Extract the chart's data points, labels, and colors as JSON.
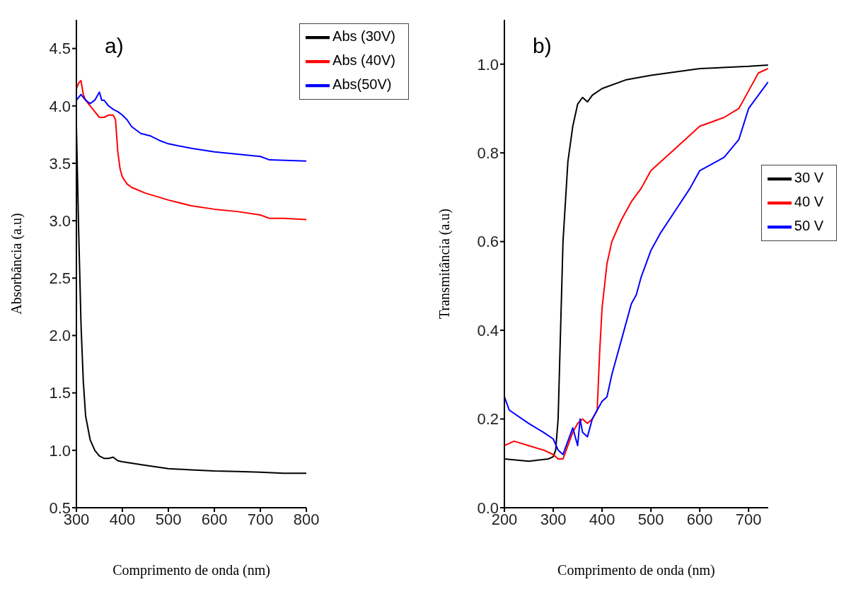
{
  "chart_data": [
    {
      "type": "line",
      "xlabel": "Comprimento de onda (nm)",
      "ylabel": "Absorbância (a.u)",
      "annotations": [
        "a)"
      ],
      "xlim": [
        300,
        800
      ],
      "xticks": [
        300,
        400,
        500,
        600,
        700,
        800
      ],
      "ylim": [
        0.5,
        4.75
      ],
      "yticks": [
        0.5,
        {
          "value": 1,
          "label": "1.0"
        },
        1.5,
        {
          "value": 2,
          "label": "2.0"
        },
        2.5,
        {
          "value": 3,
          "label": "3.0"
        },
        3.5,
        {
          "value": 4,
          "label": "4.0"
        },
        4.5
      ],
      "legend": "top right",
      "grid": false,
      "marker": "none",
      "line_style": "solid",
      "series": [
        {
          "name": "Abs (30V)",
          "color": "#000000",
          "x": [
            300,
            305,
            310,
            315,
            320,
            330,
            340,
            350,
            360,
            370,
            380,
            390,
            400,
            450,
            500,
            550,
            600,
            650,
            700,
            750,
            800
          ],
          "values": [
            3.83,
            2.9,
            2.1,
            1.6,
            1.3,
            1.09,
            1.0,
            0.95,
            0.93,
            0.93,
            0.94,
            0.91,
            0.9,
            0.87,
            0.84,
            0.83,
            0.82,
            0.815,
            0.81,
            0.8,
            0.8
          ]
        },
        {
          "name": "Abs (40V)",
          "color": "#ff0000",
          "x": [
            300,
            305,
            310,
            315,
            320,
            330,
            340,
            350,
            360,
            370,
            380,
            385,
            390,
            395,
            400,
            410,
            420,
            450,
            500,
            550,
            600,
            650,
            700,
            720,
            750,
            800
          ],
          "values": [
            4.15,
            4.2,
            4.22,
            4.1,
            4.05,
            4.0,
            3.95,
            3.9,
            3.9,
            3.92,
            3.92,
            3.88,
            3.6,
            3.45,
            3.38,
            3.32,
            3.29,
            3.24,
            3.18,
            3.13,
            3.1,
            3.08,
            3.05,
            3.02,
            3.02,
            3.01
          ]
        },
        {
          "name": "Abs(50V)",
          "color": "#0000ff",
          "x": [
            300,
            310,
            320,
            330,
            340,
            350,
            355,
            360,
            370,
            380,
            390,
            400,
            410,
            420,
            440,
            460,
            480,
            500,
            550,
            600,
            650,
            700,
            720,
            800
          ],
          "values": [
            4.05,
            4.1,
            4.05,
            4.02,
            4.05,
            4.12,
            4.05,
            4.05,
            4.0,
            3.97,
            3.95,
            3.92,
            3.88,
            3.82,
            3.76,
            3.74,
            3.7,
            3.67,
            3.63,
            3.6,
            3.58,
            3.56,
            3.53,
            3.52
          ]
        }
      ]
    },
    {
      "type": "line",
      "xlabel": "Comprimento de onda (nm)",
      "ylabel": "Transmitância (a.u)",
      "annotations": [
        "b)"
      ],
      "xlim": [
        200,
        740
      ],
      "xticks": [
        200,
        300,
        400,
        500,
        600,
        700
      ],
      "ylim": [
        0,
        1.1
      ],
      "yticks": [
        {
          "value": 0,
          "label": "0.0"
        },
        0.2,
        0.4,
        0.6,
        0.8,
        {
          "value": 1,
          "label": "1.0"
        }
      ],
      "legend": "right",
      "grid": false,
      "marker": "none",
      "line_style": "solid",
      "series": [
        {
          "name": "30 V",
          "color": "#000000",
          "x": [
            200,
            250,
            290,
            300,
            305,
            310,
            315,
            320,
            330,
            340,
            350,
            360,
            370,
            380,
            400,
            450,
            500,
            600,
            700,
            740
          ],
          "values": [
            0.11,
            0.105,
            0.11,
            0.115,
            0.13,
            0.2,
            0.4,
            0.6,
            0.78,
            0.86,
            0.91,
            0.925,
            0.915,
            0.93,
            0.945,
            0.965,
            0.975,
            0.99,
            0.995,
            0.998
          ]
        },
        {
          "name": "40 V",
          "color": "#ff0000",
          "x": [
            200,
            220,
            250,
            280,
            300,
            310,
            320,
            330,
            340,
            350,
            360,
            370,
            380,
            390,
            395,
            400,
            410,
            420,
            440,
            460,
            480,
            500,
            550,
            600,
            650,
            680,
            700,
            720,
            740
          ],
          "values": [
            0.14,
            0.15,
            0.14,
            0.13,
            0.12,
            0.11,
            0.11,
            0.14,
            0.17,
            0.19,
            0.2,
            0.19,
            0.2,
            0.22,
            0.35,
            0.45,
            0.55,
            0.6,
            0.65,
            0.69,
            0.72,
            0.76,
            0.81,
            0.86,
            0.88,
            0.9,
            0.94,
            0.98,
            0.99
          ]
        },
        {
          "name": "50 V",
          "color": "#0000ff",
          "x": [
            200,
            210,
            250,
            280,
            300,
            310,
            320,
            330,
            340,
            350,
            355,
            360,
            370,
            380,
            390,
            400,
            410,
            420,
            440,
            460,
            470,
            480,
            500,
            520,
            550,
            580,
            600,
            650,
            680,
            700,
            720,
            740
          ],
          "values": [
            0.25,
            0.22,
            0.19,
            0.17,
            0.155,
            0.13,
            0.12,
            0.15,
            0.18,
            0.14,
            0.2,
            0.17,
            0.16,
            0.2,
            0.22,
            0.24,
            0.25,
            0.3,
            0.38,
            0.46,
            0.48,
            0.52,
            0.58,
            0.62,
            0.67,
            0.72,
            0.76,
            0.79,
            0.83,
            0.9,
            0.93,
            0.96
          ]
        }
      ]
    }
  ]
}
